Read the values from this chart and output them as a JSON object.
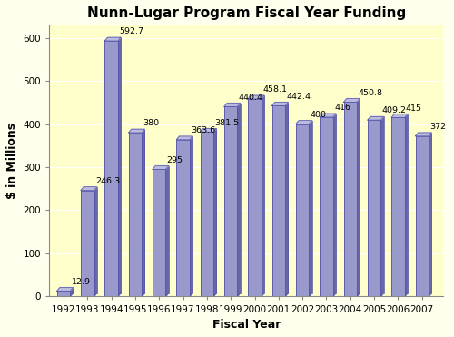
{
  "title": "Nunn-Lugar Program Fiscal Year Funding",
  "xlabel": "Fiscal Year",
  "ylabel": "$ in Millions",
  "years": [
    1992,
    1993,
    1994,
    1995,
    1996,
    1997,
    1998,
    1999,
    2000,
    2001,
    2002,
    2003,
    2004,
    2005,
    2006,
    2007
  ],
  "values": [
    12.9,
    246.3,
    592.7,
    380,
    295,
    363.6,
    381.5,
    440.4,
    458.1,
    442.4,
    400,
    416,
    450.8,
    409.2,
    415,
    372
  ],
  "bar_face_color": "#9999cc",
  "bar_right_color": "#6666aa",
  "bar_top_color": "#bbbbdd",
  "bar_edge_color": "#5555aa",
  "background_color": "#ffffee",
  "plot_bg_color": "#ffffcc",
  "ylim": [
    0,
    630
  ],
  "yticks": [
    0,
    100,
    200,
    300,
    400,
    500,
    600
  ],
  "title_fontsize": 11,
  "label_fontsize": 9,
  "tick_fontsize": 7.5,
  "annotation_fontsize": 6.8,
  "bar_width": 0.55,
  "depth": 0.15
}
